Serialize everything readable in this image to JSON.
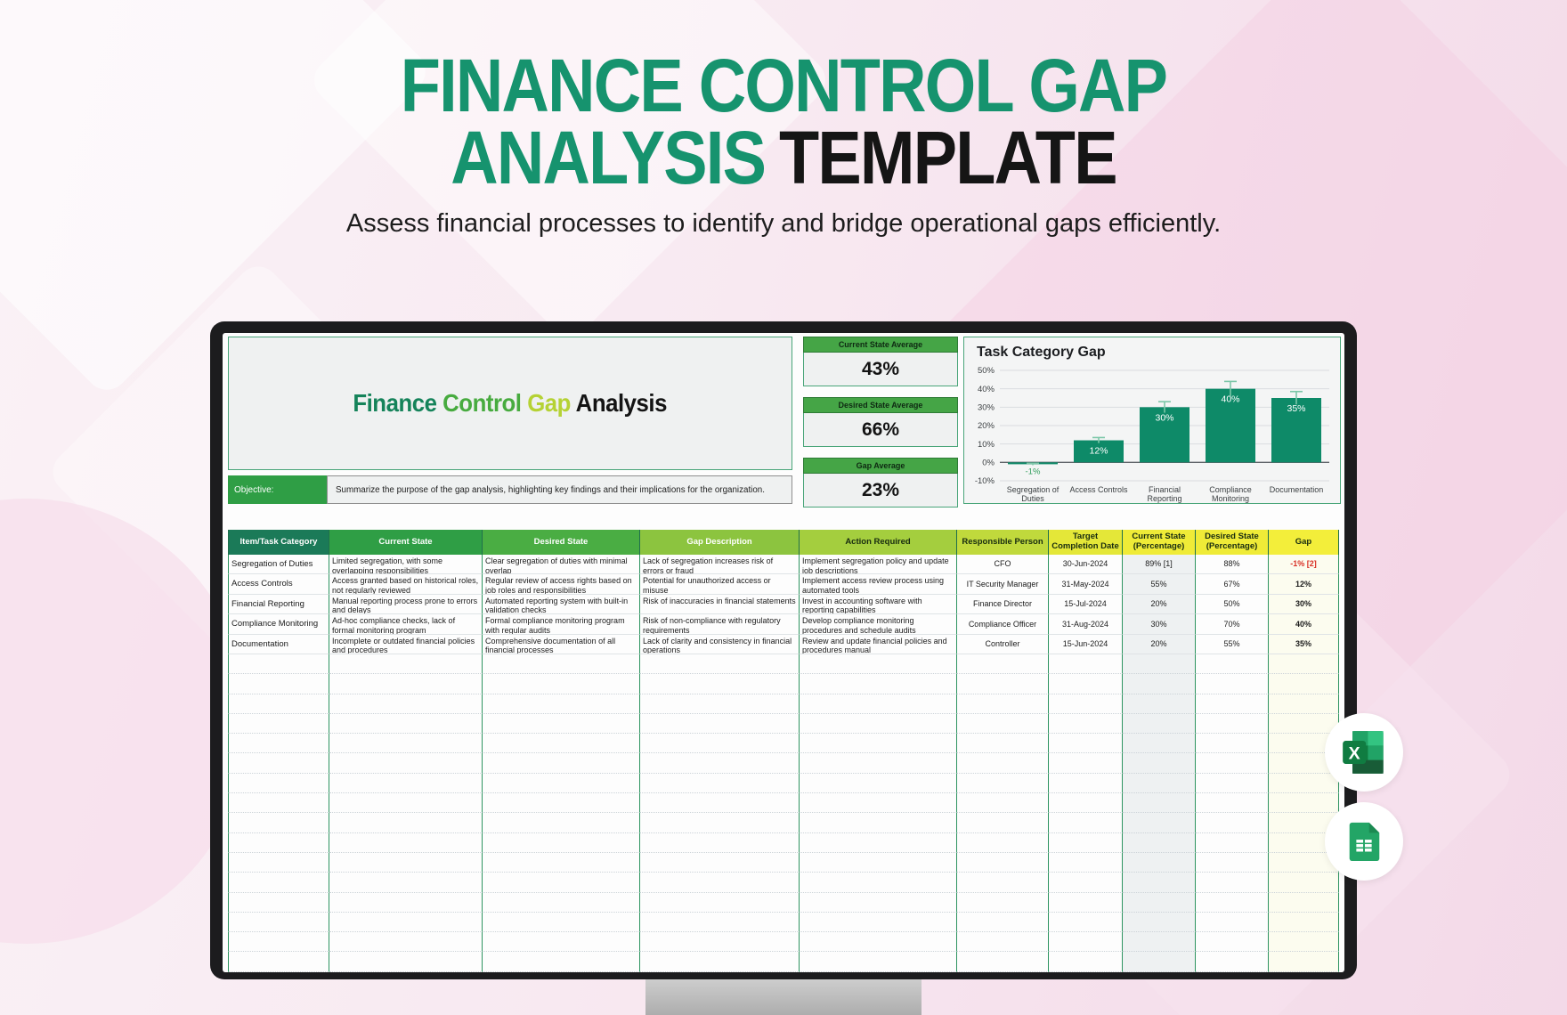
{
  "hero": {
    "title_line1": "FINANCE CONTROL GAP",
    "title_line2_green": "ANALYSIS",
    "title_line2_dark": "TEMPLATE",
    "subtitle": "Assess financial processes to identify and bridge operational gaps efficiently."
  },
  "sheet": {
    "title_parts": {
      "finance": "Finance",
      "control": "Control",
      "gap": "Gap",
      "analysis": "Analysis"
    },
    "objective": {
      "label": "Objective:",
      "text": "Summarize the purpose of the gap analysis, highlighting key findings and their implications for the organization."
    },
    "stats": [
      {
        "label": "Current State Average",
        "value": "43%"
      },
      {
        "label": "Desired State Average",
        "value": "66%"
      },
      {
        "label": "Gap Average",
        "value": "23%"
      }
    ]
  },
  "chart_data": {
    "type": "bar",
    "title": "Task Category Gap",
    "categories": [
      "Segregation of Duties",
      "Access Controls",
      "Financial Reporting",
      "Compliance Monitoring",
      "Documentation"
    ],
    "values": [
      -1,
      12,
      30,
      40,
      35
    ],
    "data_labels": [
      "-1%",
      "12%",
      "30%",
      "40%",
      "35%"
    ],
    "errors": [
      0.5,
      1.5,
      3,
      4,
      3.5
    ],
    "xlabel": "",
    "ylabel": "",
    "ylim": [
      -10,
      50
    ],
    "yticks": [
      50,
      40,
      30,
      20,
      10,
      0,
      -10
    ],
    "grid": true,
    "legend": false,
    "bar_color": "#0e8a68",
    "error_color": "#7cc7a8",
    "negative_label_color": "#35a05f"
  },
  "table": {
    "columns": [
      "Item/Task Category",
      "Current State",
      "Desired State",
      "Gap Description",
      "Action Required",
      "Responsible Person",
      "Target Completion Date",
      "Current State (Percentage)",
      "Desired State (Percentage)",
      "Gap"
    ],
    "rows": [
      [
        "Segregation of Duties",
        "Limited segregation, with some overlapping responsibilities",
        "Clear segregation of duties with minimal overlap",
        "Lack of segregation increases risk of errors or fraud",
        "Implement segregation policy and update job descriptions",
        "CFO",
        "30-Jun-2024",
        "89% [1]",
        "88%",
        "-1% [2]"
      ],
      [
        "Access Controls",
        "Access granted based on historical roles, not regularly reviewed",
        "Regular review of access rights based on job roles and responsibilities",
        "Potential for unauthorized access or misuse",
        "Implement access review process using automated tools",
        "IT Security Manager",
        "31-May-2024",
        "55%",
        "67%",
        "12%"
      ],
      [
        "Financial Reporting",
        "Manual reporting process prone to errors and delays",
        "Automated reporting system with built-in validation checks",
        "Risk of inaccuracies in financial statements",
        "Invest in accounting software with reporting capabilities",
        "Finance Director",
        "15-Jul-2024",
        "20%",
        "50%",
        "30%"
      ],
      [
        "Compliance Monitoring",
        "Ad-hoc compliance checks, lack of formal monitoring program",
        "Formal compliance monitoring program with regular audits",
        "Risk of non-compliance with regulatory requirements",
        "Develop compliance monitoring procedures and schedule audits",
        "Compliance Officer",
        "31-Aug-2024",
        "30%",
        "70%",
        "40%"
      ],
      [
        "Documentation",
        "Incomplete or outdated financial policies and procedures",
        "Comprehensive documentation of all financial processes",
        "Lack of clarity and consistency in financial operations",
        "Review and update financial policies and procedures manual",
        "Controller",
        "15-Jun-2024",
        "20%",
        "55%",
        "35%"
      ]
    ],
    "empty_row_count": 16
  },
  "badges": {
    "excel": "excel-icon",
    "sheets": "google-sheets-icon"
  },
  "colors": {
    "brand_green": "#16936e",
    "title_dark": "#151515",
    "negative": "#d93025",
    "bar": "#0e8a68"
  }
}
